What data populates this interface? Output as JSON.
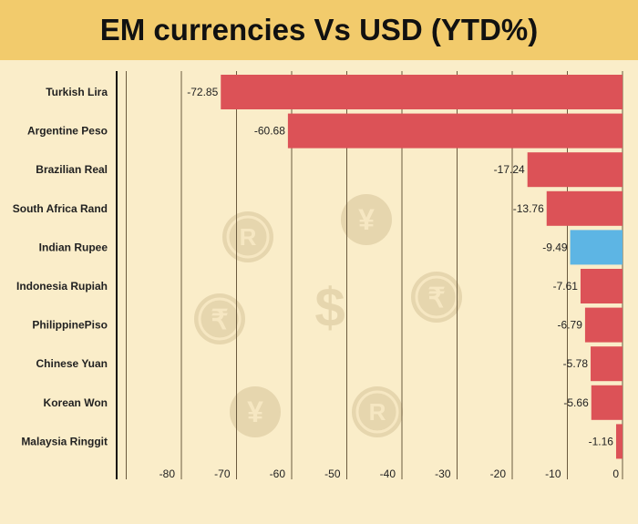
{
  "chart_data": {
    "type": "bar",
    "orientation": "horizontal",
    "title": "EM currencies Vs USD (YTD%)",
    "categories": [
      "Turkish Lira",
      "Argentine Peso",
      "Brazilian Real",
      "South Africa Rand",
      "Indian Rupee",
      "Indonesia Rupiah",
      "PhilippinePiso",
      "Chinese Yuan",
      "Korean Won",
      "Malaysia Ringgit"
    ],
    "values": [
      -72.85,
      -60.68,
      -17.24,
      -13.76,
      -9.49,
      -7.61,
      -6.79,
      -5.78,
      -5.66,
      -1.16
    ],
    "data_labels": [
      "-72.85",
      "-60.68",
      "-17.24",
      "-13.76",
      "-9.49",
      "-7.61",
      "-6.79",
      "-5.78",
      "-5.66",
      "-1.16"
    ],
    "highlight": "Indian Rupee",
    "xlim": [
      -90,
      0
    ],
    "x_ticks": [
      -80,
      -70,
      -60,
      -50,
      -40,
      -30,
      -20,
      -10,
      0
    ],
    "grid": true,
    "colors": {
      "bar": "#dc5257",
      "highlight": "#5db5e4",
      "background": "#faedc9",
      "title_bg": "#f2cb6c"
    }
  }
}
